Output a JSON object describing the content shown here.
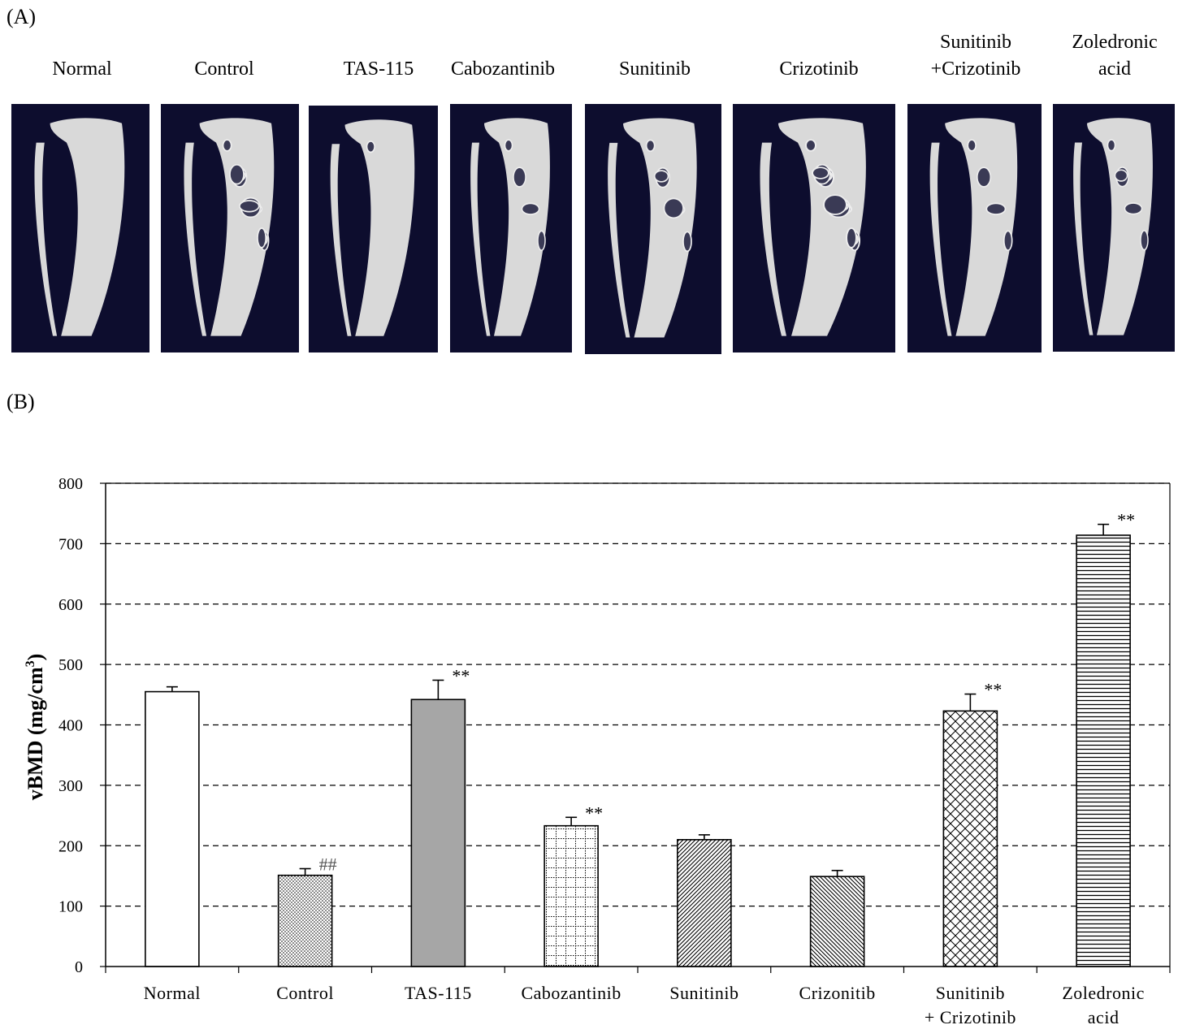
{
  "panels": {
    "a_label": "(A)",
    "b_label": "(B)"
  },
  "ct_groups": [
    {
      "line1": "",
      "line2": "Normal"
    },
    {
      "line1": "",
      "line2": "Control"
    },
    {
      "line1": "",
      "line2": "TAS-115"
    },
    {
      "line1": "",
      "line2": "Cabozantinib"
    },
    {
      "line1": "",
      "line2": "Sunitinib"
    },
    {
      "line1": "",
      "line2": "Crizotinib"
    },
    {
      "line1": "Sunitinib",
      "line2": "+Crizotinib"
    },
    {
      "line1": "Zoledronic",
      "line2": "acid"
    }
  ],
  "colors": {
    "ct_background": "#0d0d2e",
    "bone": "#d9d9d9",
    "bar_gray": "#a6a6a6",
    "grid": "#000000"
  },
  "chart_data": {
    "type": "bar",
    "ylabel": "vBMD (mg/cm³)",
    "ylabel_main": "vBMD (mg/cm",
    "ylabel_sup": "3",
    "ylabel_end": ")",
    "ylim": [
      0,
      800
    ],
    "yticks": [
      0,
      100,
      200,
      300,
      400,
      500,
      600,
      700,
      800
    ],
    "grid": "dashed horizontal",
    "categories": [
      [
        "Normal"
      ],
      [
        "Control"
      ],
      [
        "TAS-115"
      ],
      [
        "Cabozantinib"
      ],
      [
        "Sunitinib"
      ],
      [
        "Crizonitib"
      ],
      [
        "Sunitinib",
        "+ Crizotinib"
      ],
      [
        "Zoledronic",
        "acid"
      ]
    ],
    "values": [
      455,
      151,
      442,
      233,
      210,
      149,
      423,
      714
    ],
    "errors": [
      8,
      11,
      32,
      14,
      8,
      10,
      28,
      18
    ],
    "patterns": [
      "white",
      "dots",
      "gray",
      "grid",
      "diag-right",
      "diag-left",
      "crosshatch",
      "horizontal"
    ],
    "annotations": [
      "",
      "##",
      "**",
      "**",
      "",
      "",
      "**",
      "**"
    ]
  }
}
